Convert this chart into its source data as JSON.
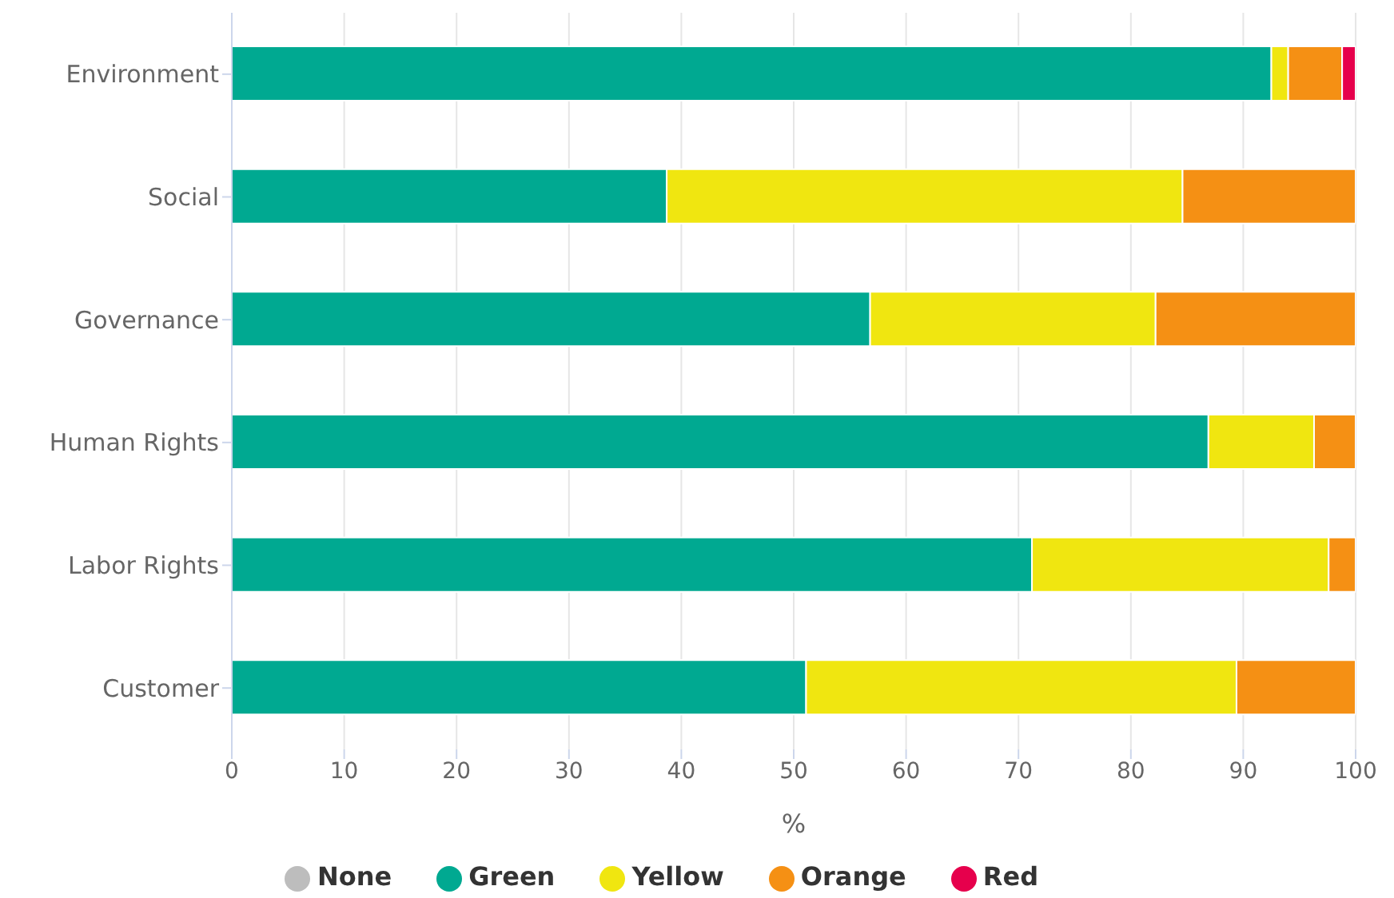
{
  "chart_data": {
    "type": "bar",
    "orientation": "horizontal",
    "stacked": true,
    "xlabel": "%",
    "categories": [
      "Environment",
      "Social",
      "Governance",
      "Human Rights",
      "Labor Rights",
      "Customer"
    ],
    "series": [
      {
        "name": "None",
        "color": "#bdbdbd",
        "values": [
          0,
          0,
          0,
          0,
          0,
          0
        ]
      },
      {
        "name": "Green",
        "color": "#00a991",
        "values": [
          92.5,
          38.7,
          56.8,
          86.9,
          71.2,
          51.1
        ]
      },
      {
        "name": "Yellow",
        "color": "#f0e610",
        "values": [
          1.5,
          45.9,
          25.4,
          9.4,
          26.4,
          38.3
        ]
      },
      {
        "name": "Orange",
        "color": "#f59014",
        "values": [
          4.8,
          15.4,
          17.8,
          3.7,
          2.4,
          10.6
        ]
      },
      {
        "name": "Red",
        "color": "#e6004c",
        "values": [
          1.2,
          0,
          0,
          0,
          0,
          0
        ]
      }
    ],
    "xlim": [
      0,
      100
    ],
    "xticks": [
      0,
      10,
      20,
      30,
      40,
      50,
      60,
      70,
      80,
      90,
      100
    ],
    "grid": "x",
    "legend": "bottom"
  }
}
